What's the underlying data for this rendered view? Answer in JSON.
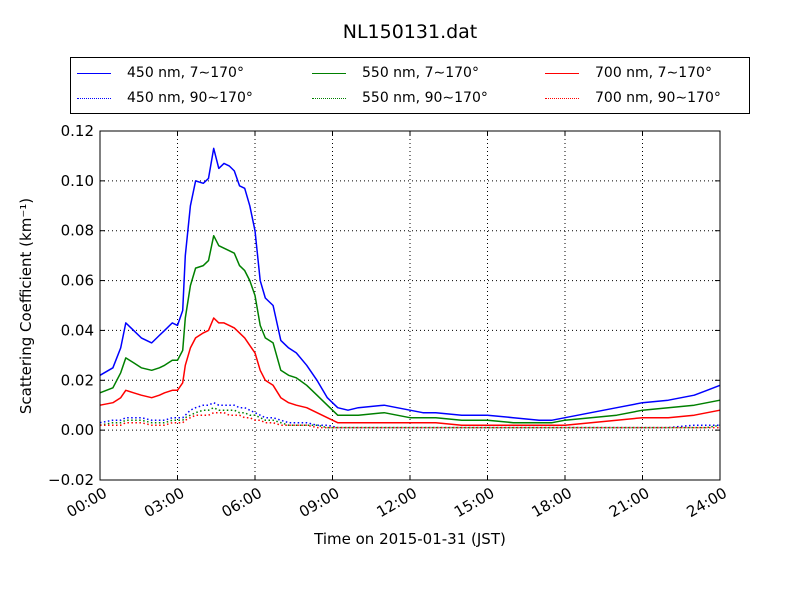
{
  "chart_data": {
    "type": "line",
    "title": "NL150131.dat",
    "xlabel": "Time on 2015-01-31 (JST)",
    "ylabel": "Scattering Coefficient (km⁻¹)",
    "xlim": [
      0,
      24
    ],
    "ylim": [
      -0.02,
      0.12
    ],
    "x_ticks": [
      0,
      3,
      6,
      9,
      12,
      15,
      18,
      21,
      24
    ],
    "x_tick_labels": [
      "00:00",
      "03:00",
      "06:00",
      "09:00",
      "12:00",
      "15:00",
      "18:00",
      "21:00",
      "24:00"
    ],
    "y_ticks": [
      -0.02,
      0.0,
      0.02,
      0.04,
      0.06,
      0.08,
      0.1,
      0.12
    ],
    "y_tick_labels": [
      "−0.02",
      "0.00",
      "0.02",
      "0.04",
      "0.06",
      "0.08",
      "0.10",
      "0.12"
    ],
    "grid": true,
    "legend_position": "top",
    "x": [
      0.0,
      0.5,
      0.8,
      1.0,
      1.3,
      1.6,
      2.0,
      2.3,
      2.5,
      2.8,
      3.0,
      3.2,
      3.3,
      3.5,
      3.7,
      4.0,
      4.2,
      4.4,
      4.6,
      4.8,
      5.0,
      5.2,
      5.4,
      5.6,
      5.8,
      6.0,
      6.2,
      6.4,
      6.7,
      7.0,
      7.3,
      7.6,
      8.0,
      8.4,
      8.8,
      9.2,
      9.6,
      10.0,
      11.0,
      11.5,
      12.0,
      12.5,
      13.0,
      14.0,
      15.0,
      16.0,
      17.0,
      17.5,
      18.0,
      19.0,
      20.0,
      21.0,
      22.0,
      23.0,
      23.5,
      24.0
    ],
    "series": [
      {
        "name": "450 nm, 7∼170°",
        "color": "#0000ff",
        "style": "solid",
        "values": [
          0.022,
          0.025,
          0.033,
          0.043,
          0.04,
          0.037,
          0.035,
          0.038,
          0.04,
          0.043,
          0.042,
          0.048,
          0.07,
          0.09,
          0.1,
          0.099,
          0.101,
          0.113,
          0.105,
          0.107,
          0.106,
          0.104,
          0.098,
          0.097,
          0.09,
          0.08,
          0.06,
          0.053,
          0.05,
          0.036,
          0.033,
          0.031,
          0.026,
          0.02,
          0.013,
          0.009,
          0.008,
          0.009,
          0.01,
          0.009,
          0.008,
          0.007,
          0.007,
          0.006,
          0.006,
          0.005,
          0.004,
          0.004,
          0.005,
          0.007,
          0.009,
          0.011,
          0.012,
          0.014,
          0.016,
          0.018
        ]
      },
      {
        "name": "550 nm, 7∼170°",
        "color": "#008000",
        "style": "solid",
        "values": [
          0.015,
          0.017,
          0.023,
          0.029,
          0.027,
          0.025,
          0.024,
          0.025,
          0.026,
          0.028,
          0.028,
          0.032,
          0.045,
          0.058,
          0.065,
          0.066,
          0.068,
          0.078,
          0.074,
          0.073,
          0.072,
          0.071,
          0.066,
          0.064,
          0.06,
          0.054,
          0.042,
          0.037,
          0.035,
          0.024,
          0.022,
          0.021,
          0.018,
          0.014,
          0.01,
          0.006,
          0.006,
          0.006,
          0.007,
          0.006,
          0.005,
          0.005,
          0.005,
          0.004,
          0.004,
          0.003,
          0.003,
          0.003,
          0.004,
          0.005,
          0.006,
          0.008,
          0.009,
          0.01,
          0.011,
          0.012
        ]
      },
      {
        "name": "700 nm, 7∼170°",
        "color": "#ff0000",
        "style": "solid",
        "values": [
          0.01,
          0.011,
          0.013,
          0.016,
          0.015,
          0.014,
          0.013,
          0.014,
          0.015,
          0.016,
          0.016,
          0.019,
          0.026,
          0.033,
          0.037,
          0.039,
          0.04,
          0.045,
          0.043,
          0.043,
          0.042,
          0.041,
          0.039,
          0.037,
          0.034,
          0.031,
          0.024,
          0.02,
          0.018,
          0.013,
          0.011,
          0.01,
          0.009,
          0.007,
          0.005,
          0.003,
          0.003,
          0.003,
          0.003,
          0.003,
          0.003,
          0.003,
          0.003,
          0.002,
          0.002,
          0.002,
          0.002,
          0.002,
          0.002,
          0.003,
          0.004,
          0.005,
          0.005,
          0.006,
          0.007,
          0.008
        ]
      },
      {
        "name": "450 nm, 90∼170°",
        "color": "#0000ff",
        "style": "dotted",
        "values": [
          0.003,
          0.004,
          0.004,
          0.005,
          0.005,
          0.005,
          0.004,
          0.004,
          0.004,
          0.005,
          0.005,
          0.005,
          0.006,
          0.008,
          0.009,
          0.01,
          0.01,
          0.011,
          0.01,
          0.01,
          0.01,
          0.01,
          0.009,
          0.009,
          0.008,
          0.007,
          0.006,
          0.005,
          0.005,
          0.004,
          0.003,
          0.003,
          0.003,
          0.002,
          0.002,
          0.001,
          0.001,
          0.001,
          0.001,
          0.001,
          0.001,
          0.001,
          0.001,
          0.001,
          0.001,
          0.001,
          0.001,
          0.001,
          0.001,
          0.001,
          0.001,
          0.001,
          0.001,
          0.002,
          0.002,
          0.002
        ]
      },
      {
        "name": "550 nm, 90∼170°",
        "color": "#008000",
        "style": "dotted",
        "values": [
          0.002,
          0.003,
          0.003,
          0.004,
          0.004,
          0.004,
          0.003,
          0.003,
          0.003,
          0.004,
          0.004,
          0.004,
          0.005,
          0.006,
          0.007,
          0.008,
          0.008,
          0.009,
          0.008,
          0.008,
          0.008,
          0.008,
          0.007,
          0.007,
          0.006,
          0.006,
          0.005,
          0.004,
          0.004,
          0.003,
          0.002,
          0.002,
          0.002,
          0.002,
          0.001,
          0.001,
          0.001,
          0.001,
          0.001,
          0.001,
          0.001,
          0.001,
          0.001,
          0.001,
          0.001,
          0.001,
          0.001,
          0.001,
          0.001,
          0.001,
          0.001,
          0.001,
          0.001,
          0.001,
          0.001,
          0.002
        ]
      },
      {
        "name": "700 nm, 90∼170°",
        "color": "#ff0000",
        "style": "dotted",
        "values": [
          0.002,
          0.002,
          0.002,
          0.003,
          0.003,
          0.003,
          0.002,
          0.002,
          0.002,
          0.003,
          0.003,
          0.003,
          0.004,
          0.005,
          0.006,
          0.006,
          0.006,
          0.007,
          0.007,
          0.007,
          0.006,
          0.006,
          0.006,
          0.005,
          0.005,
          0.004,
          0.004,
          0.003,
          0.003,
          0.002,
          0.002,
          0.002,
          0.002,
          0.001,
          0.001,
          0.001,
          0.001,
          0.001,
          0.001,
          0.001,
          0.001,
          0.001,
          0.001,
          0.001,
          0.001,
          0.001,
          0.001,
          0.001,
          0.001,
          0.001,
          0.001,
          0.001,
          0.001,
          0.001,
          0.001,
          0.001
        ]
      }
    ]
  }
}
